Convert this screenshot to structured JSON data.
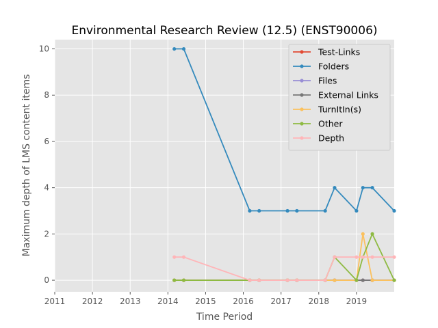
{
  "chart_data": {
    "type": "line",
    "title": "Environmental Research Review (12.5) (ENST90006)",
    "xlabel": "Time Period",
    "ylabel": "Maximum depth of LMS content items",
    "xlim": [
      2011,
      2020.0
    ],
    "ylim": [
      -0.5,
      10.4
    ],
    "x_ticks": [
      "2011",
      "2012",
      "2013",
      "2014",
      "2015",
      "2016",
      "2017",
      "2018",
      "2019"
    ],
    "y_ticks": [
      "0",
      "2",
      "4",
      "6",
      "8",
      "10"
    ],
    "grid": true,
    "legend_position": "top-right",
    "x": [
      2014.17,
      2014.42,
      2016.17,
      2016.42,
      2017.17,
      2017.42,
      2018.17,
      2018.42,
      2019.0,
      2019.17,
      2019.42,
      2020.0
    ],
    "series": [
      {
        "name": "Test-Links",
        "color": "#E24A33",
        "values": [
          0,
          0,
          0,
          0,
          0,
          0,
          0,
          0,
          0,
          0,
          0,
          0
        ]
      },
      {
        "name": "Folders",
        "color": "#348ABD",
        "values": [
          10,
          10,
          3,
          3,
          3,
          3,
          3,
          4,
          3,
          4,
          4,
          3
        ]
      },
      {
        "name": "Files",
        "color": "#988ED5",
        "values": [
          0,
          0,
          0,
          0,
          0,
          0,
          0,
          0,
          0,
          0,
          0,
          0
        ]
      },
      {
        "name": "External Links",
        "color": "#777777",
        "values": [
          0,
          0,
          0,
          0,
          0,
          0,
          0,
          0,
          0,
          0,
          0,
          0
        ]
      },
      {
        "name": "TurnItIn(s)",
        "color": "#FBC15E",
        "values": [
          0,
          0,
          0,
          0,
          0,
          0,
          0,
          0,
          0,
          2,
          0,
          0
        ]
      },
      {
        "name": "Other",
        "color": "#8EBA42",
        "values": [
          0,
          0,
          0,
          0,
          0,
          0,
          0,
          1,
          0,
          1,
          2,
          0
        ]
      },
      {
        "name": "Depth",
        "color": "#FFB5B8",
        "values": [
          1,
          1,
          0,
          0,
          0,
          0,
          0,
          1,
          1,
          1,
          1,
          1
        ]
      }
    ]
  }
}
